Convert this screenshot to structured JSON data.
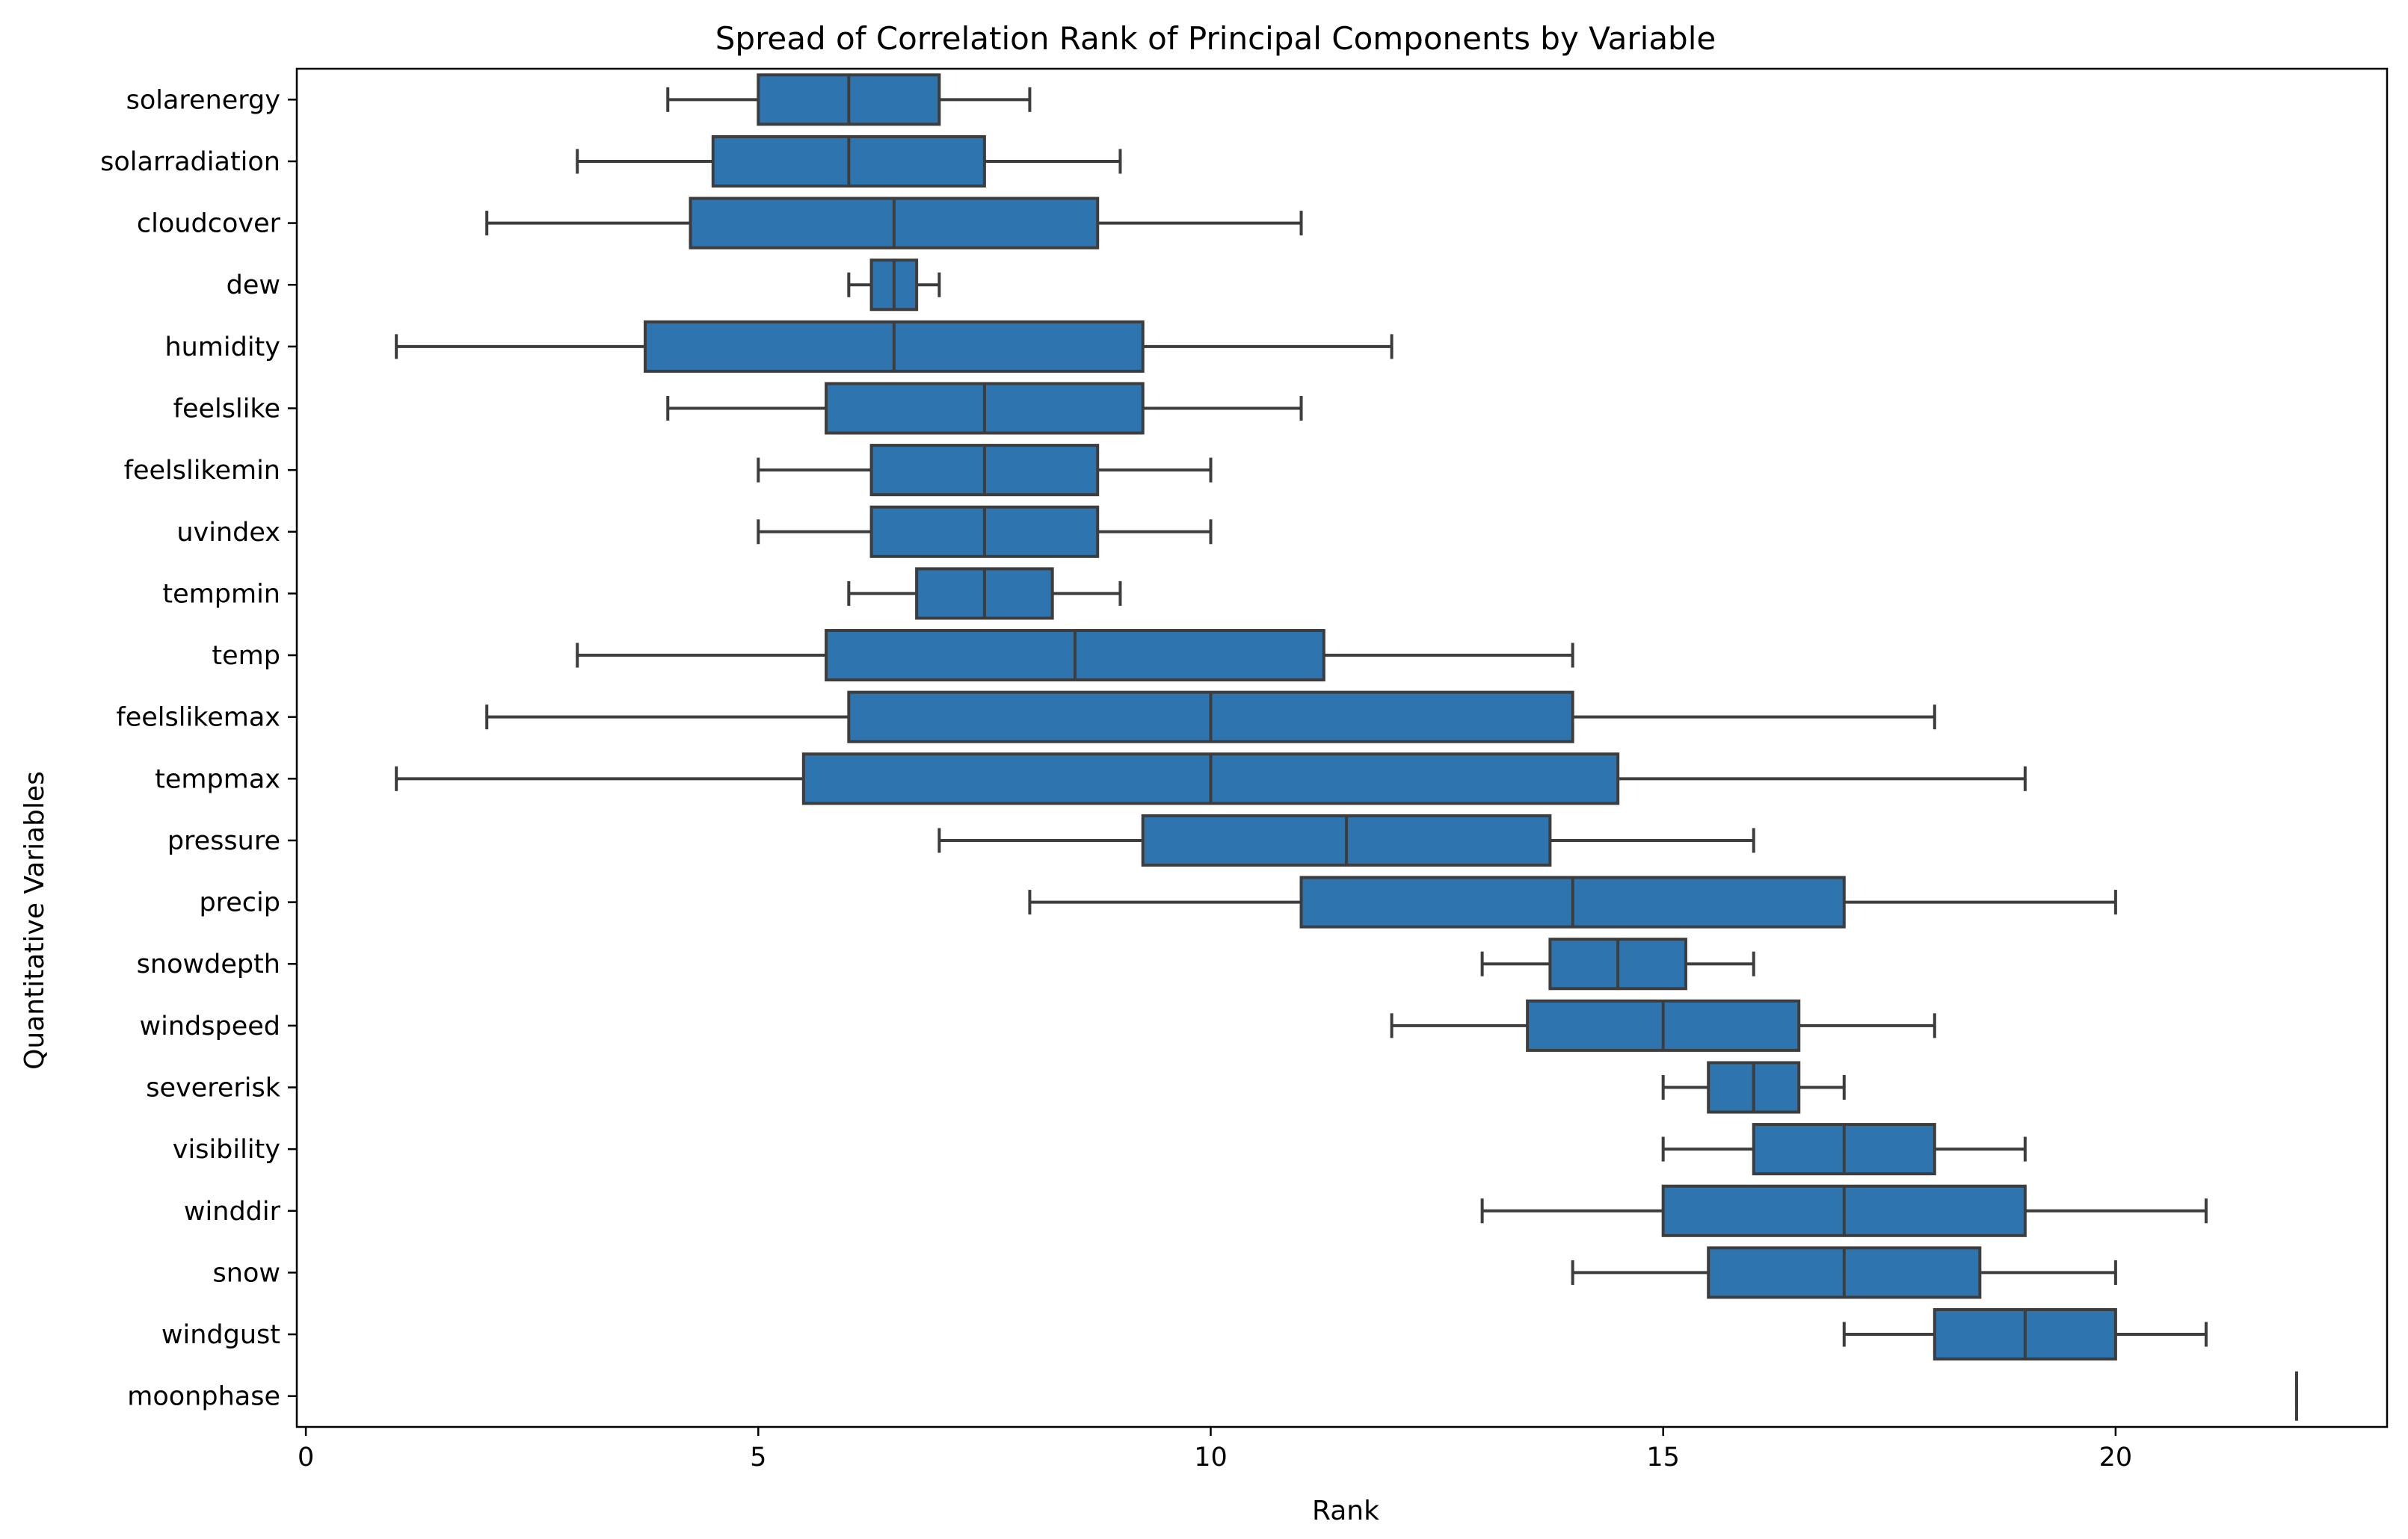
{
  "chart_data": {
    "type": "boxplot",
    "orientation": "horizontal",
    "title": "Spread of Correlation Rank of Principal Components by Variable",
    "xlabel": "Rank",
    "ylabel": "Quantitative Variables",
    "xlim": [
      -0.1,
      23.0
    ],
    "xticks": [
      0,
      5,
      10,
      15,
      20
    ],
    "grid": false,
    "legend": "none",
    "colors": {
      "box_fill": "#2e75b0",
      "line": "#3d3d3d"
    },
    "series": [
      {
        "category": "solarenergy",
        "whisker_low": 4,
        "q1": 5,
        "median": 6,
        "q3": 7,
        "whisker_high": 8
      },
      {
        "category": "solarradiation",
        "whisker_low": 3,
        "q1": 4.5,
        "median": 6,
        "q3": 7.5,
        "whisker_high": 9
      },
      {
        "category": "cloudcover",
        "whisker_low": 2,
        "q1": 4.25,
        "median": 6.5,
        "q3": 8.75,
        "whisker_high": 11
      },
      {
        "category": "dew",
        "whisker_low": 6,
        "q1": 6.25,
        "median": 6.5,
        "q3": 6.75,
        "whisker_high": 7
      },
      {
        "category": "humidity",
        "whisker_low": 1,
        "q1": 3.75,
        "median": 6.5,
        "q3": 9.25,
        "whisker_high": 12
      },
      {
        "category": "feelslike",
        "whisker_low": 4,
        "q1": 5.75,
        "median": 7.5,
        "q3": 9.25,
        "whisker_high": 11
      },
      {
        "category": "feelslikemin",
        "whisker_low": 5,
        "q1": 6.25,
        "median": 7.5,
        "q3": 8.75,
        "whisker_high": 10
      },
      {
        "category": "uvindex",
        "whisker_low": 5,
        "q1": 6.25,
        "median": 7.5,
        "q3": 8.75,
        "whisker_high": 10
      },
      {
        "category": "tempmin",
        "whisker_low": 6,
        "q1": 6.75,
        "median": 7.5,
        "q3": 8.25,
        "whisker_high": 9
      },
      {
        "category": "temp",
        "whisker_low": 3,
        "q1": 5.75,
        "median": 8.5,
        "q3": 11.25,
        "whisker_high": 14
      },
      {
        "category": "feelslikemax",
        "whisker_low": 2,
        "q1": 6,
        "median": 10,
        "q3": 14,
        "whisker_high": 18
      },
      {
        "category": "tempmax",
        "whisker_low": 1,
        "q1": 5.5,
        "median": 10,
        "q3": 14.5,
        "whisker_high": 19
      },
      {
        "category": "pressure",
        "whisker_low": 7,
        "q1": 9.25,
        "median": 11.5,
        "q3": 13.75,
        "whisker_high": 16
      },
      {
        "category": "precip",
        "whisker_low": 8,
        "q1": 11,
        "median": 14,
        "q3": 17,
        "whisker_high": 20
      },
      {
        "category": "snowdepth",
        "whisker_low": 13,
        "q1": 13.75,
        "median": 14.5,
        "q3": 15.25,
        "whisker_high": 16
      },
      {
        "category": "windspeed",
        "whisker_low": 12,
        "q1": 13.5,
        "median": 15,
        "q3": 16.5,
        "whisker_high": 18
      },
      {
        "category": "severerisk",
        "whisker_low": 15,
        "q1": 15.5,
        "median": 16,
        "q3": 16.5,
        "whisker_high": 17
      },
      {
        "category": "visibility",
        "whisker_low": 15,
        "q1": 16,
        "median": 17,
        "q3": 18,
        "whisker_high": 19
      },
      {
        "category": "winddir",
        "whisker_low": 13,
        "q1": 15,
        "median": 17,
        "q3": 19,
        "whisker_high": 21
      },
      {
        "category": "snow",
        "whisker_low": 14,
        "q1": 15.5,
        "median": 17,
        "q3": 18.5,
        "whisker_high": 20
      },
      {
        "category": "windgust",
        "whisker_low": 17,
        "q1": 18,
        "median": 19,
        "q3": 20,
        "whisker_high": 21
      },
      {
        "category": "moonphase",
        "whisker_low": 22,
        "q1": 22,
        "median": 22,
        "q3": 22,
        "whisker_high": 22
      }
    ]
  }
}
